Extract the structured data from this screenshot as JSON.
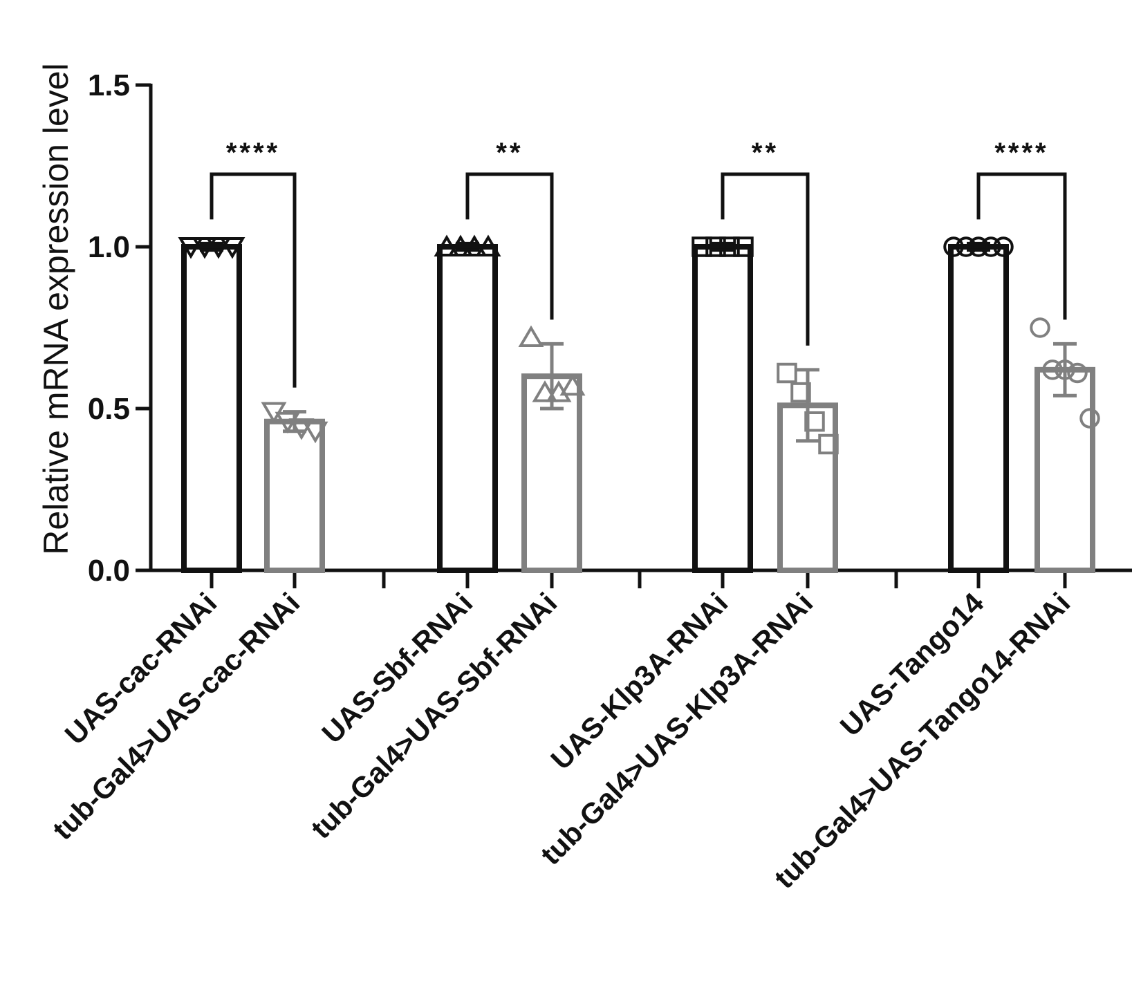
{
  "chart_data": {
    "type": "bar",
    "ylabel": "Relative mRNA expression level",
    "ylim": [
      0,
      1.5
    ],
    "yticks": [
      0.0,
      0.5,
      1.0,
      1.5
    ],
    "ytick_labels": [
      "0.0",
      "0.5",
      "1.0",
      "1.5"
    ],
    "categories": [
      "UAS-cac-RNAi",
      "tub-Gal4>UAS-cac-RNAi",
      "UAS-Sbf-RNAi",
      "tub-Gal4>UAS-Sbf-RNAi",
      "UAS-Klp3A-RNAi",
      "tub-Gal4>UAS-Klp3A-RNAi",
      "UAS-Tango14",
      "tub-Gal4>UAS-Tango14-RNAi"
    ],
    "bars": [
      {
        "value": 1.0,
        "err": 0.01,
        "color": "#111111",
        "marker": "triangle-down",
        "points": [
          1.0,
          1.0,
          1.0,
          1.0
        ]
      },
      {
        "value": 0.46,
        "err": 0.03,
        "color": "#808080",
        "marker": "triangle-down",
        "points": [
          0.49,
          0.46,
          0.44,
          0.43
        ]
      },
      {
        "value": 1.0,
        "err": 0.01,
        "color": "#111111",
        "marker": "triangle-up",
        "points": [
          1.0,
          1.0,
          1.0,
          1.0
        ]
      },
      {
        "value": 0.6,
        "err": 0.1,
        "color": "#808080",
        "marker": "triangle-up",
        "points": [
          0.72,
          0.55,
          0.55,
          0.57
        ]
      },
      {
        "value": 1.0,
        "err": 0.01,
        "color": "#111111",
        "marker": "square",
        "points": [
          1.0,
          1.0,
          1.0,
          1.0
        ]
      },
      {
        "value": 0.51,
        "err": 0.11,
        "color": "#808080",
        "marker": "square",
        "points": [
          0.61,
          0.55,
          0.46,
          0.39
        ]
      },
      {
        "value": 1.0,
        "err": 0.01,
        "color": "#111111",
        "marker": "circle",
        "points": [
          1.0,
          1.0,
          1.0,
          1.0,
          1.0
        ]
      },
      {
        "value": 0.62,
        "err": 0.08,
        "color": "#808080",
        "marker": "circle",
        "points": [
          0.75,
          0.62,
          0.62,
          0.61,
          0.47
        ]
      }
    ],
    "comparisons": [
      {
        "from": 0,
        "to": 1,
        "label": "****"
      },
      {
        "from": 2,
        "to": 3,
        "label": "**"
      },
      {
        "from": 4,
        "to": 5,
        "label": "**"
      },
      {
        "from": 6,
        "to": 7,
        "label": "****"
      }
    ],
    "legend": "none",
    "grid": false
  }
}
